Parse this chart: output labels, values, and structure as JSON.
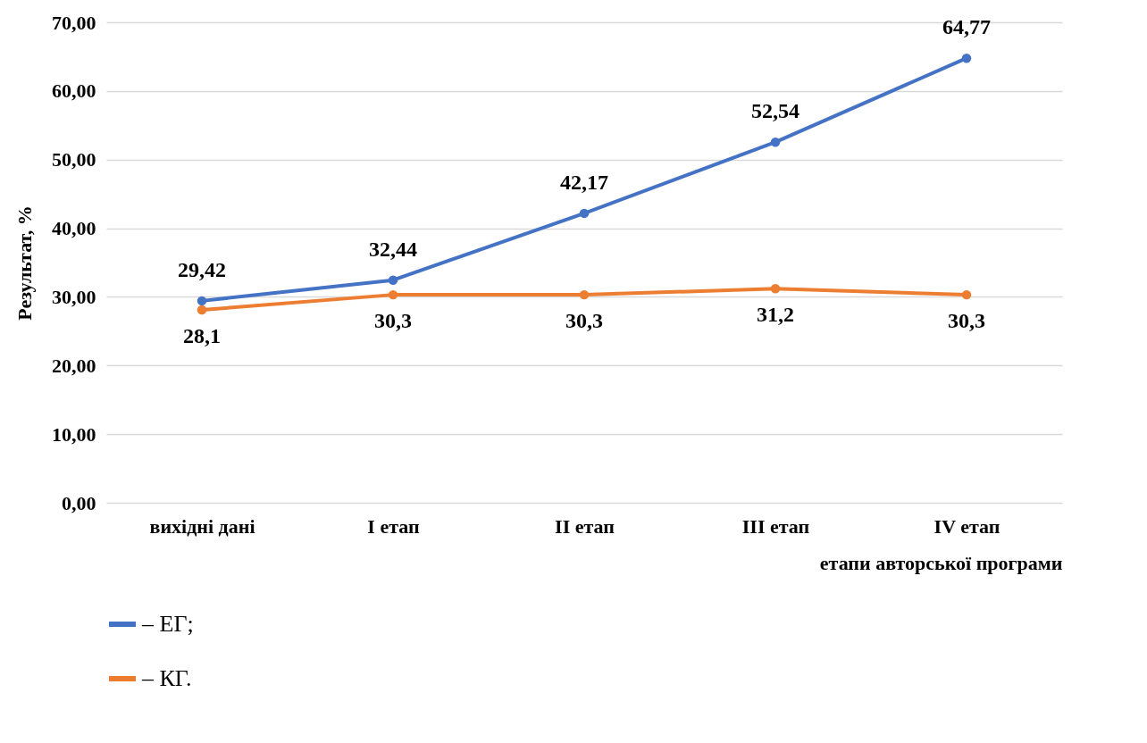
{
  "chart_data": {
    "type": "line",
    "ylabel": "Результат, %",
    "xlabel": "етапи авторської програми",
    "categories": [
      "вихідні дані",
      "I етап",
      "II етап",
      "III етап",
      "IV етап"
    ],
    "ylim": [
      0,
      70
    ],
    "yticks": [
      {
        "value": 0,
        "label": "0,00"
      },
      {
        "value": 10,
        "label": "10,00"
      },
      {
        "value": 20,
        "label": "20,00"
      },
      {
        "value": 30,
        "label": "30,00"
      },
      {
        "value": 40,
        "label": "40,00"
      },
      {
        "value": 50,
        "label": "50,00"
      },
      {
        "value": 60,
        "label": "60,00"
      },
      {
        "value": 70,
        "label": "70,00"
      }
    ],
    "grid": "y",
    "legend": "bottom left",
    "marker": "circle",
    "line_style": "solid",
    "series": [
      {
        "name": "– ЕГ;",
        "color": "#4472c4",
        "values": [
          29.42,
          32.44,
          42.17,
          52.54,
          64.77
        ],
        "value_labels": [
          "29,42",
          "32,44",
          "42,17",
          "52,54",
          "64,77"
        ]
      },
      {
        "name": "– КГ.",
        "color": "#ed7d31",
        "values": [
          28.1,
          30.3,
          30.3,
          31.2,
          30.3
        ],
        "value_labels": [
          "28,1",
          "30,3",
          "30,3",
          "31,2",
          "30,3"
        ]
      }
    ]
  }
}
